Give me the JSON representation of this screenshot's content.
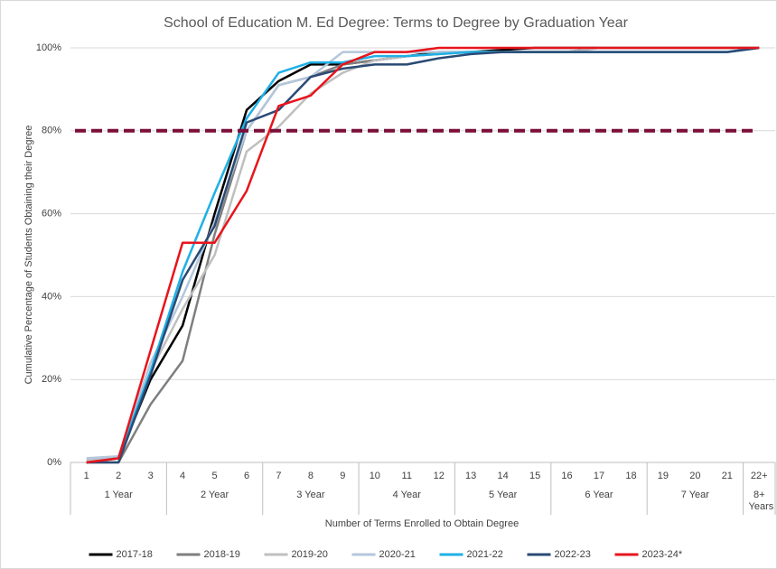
{
  "chart_data": {
    "type": "line",
    "title": "School of Education M. Ed Degree: Terms to Degree by Graduation Year",
    "y_label": "Cumulative Percentage of Students Obtaining their Degree",
    "x_label": "Number of Terms Enrolled to Obtain Degree",
    "categories": [
      "1",
      "2",
      "3",
      "4",
      "5",
      "6",
      "7",
      "8",
      "9",
      "10",
      "11",
      "12",
      "13",
      "14",
      "15",
      "16",
      "17",
      "18",
      "19",
      "20",
      "21",
      "22+"
    ],
    "category_groups": [
      "1 Year",
      "2 Year",
      "3 Year",
      "4 Year",
      "5 Year",
      "6 Year",
      "7 Year",
      "8+ Years"
    ],
    "ylim": [
      0,
      100
    ],
    "yticks": [
      {
        "value": 0,
        "label": "0%"
      },
      {
        "value": 20,
        "label": "20%"
      },
      {
        "value": 40,
        "label": "40%"
      },
      {
        "value": 60,
        "label": "60%"
      },
      {
        "value": 80,
        "label": "80%"
      },
      {
        "value": 100,
        "label": "100%"
      }
    ],
    "grid": true,
    "legend": "bottom",
    "reference_line": {
      "value": 80,
      "color": "#7b0f3a",
      "style": "dashed"
    },
    "series": [
      {
        "name": "2017-18",
        "color": "#000000",
        "values": [
          0,
          1,
          20,
          33,
          60,
          85,
          92,
          96,
          96,
          97,
          98,
          99,
          99,
          99.5,
          100,
          100,
          100,
          100,
          100,
          100,
          100,
          100
        ]
      },
      {
        "name": "2018-19",
        "color": "#7f7f7f",
        "values": [
          0,
          0,
          14,
          24.5,
          55,
          80,
          91,
          93,
          96,
          97,
          98,
          98.5,
          99,
          99,
          99,
          99,
          100,
          100,
          100,
          100,
          100,
          100
        ]
      },
      {
        "name": "2019-20",
        "color": "#bfbfbf",
        "values": [
          0.5,
          1,
          22,
          37,
          50,
          75,
          81,
          89,
          94,
          97,
          98,
          98.5,
          99,
          99,
          99,
          99,
          100,
          100,
          100,
          100,
          100,
          100
        ]
      },
      {
        "name": "2020-21",
        "color": "#b4c7dc",
        "values": [
          1,
          1.5,
          24,
          40,
          58,
          80,
          91,
          93,
          99,
          99,
          99,
          99,
          99,
          99,
          99,
          99,
          99,
          99,
          99,
          99,
          99,
          100
        ]
      },
      {
        "name": "2021-22",
        "color": "#1fb0e6",
        "values": [
          0,
          1,
          22,
          46,
          65,
          83,
          94,
          96.5,
          96.5,
          98,
          98,
          98.5,
          99,
          99,
          99,
          99,
          99,
          99,
          99,
          99,
          99,
          100
        ]
      },
      {
        "name": "2022-23",
        "color": "#2a4a75",
        "values": [
          0,
          0,
          21,
          44,
          57,
          82,
          85,
          93,
          95,
          96,
          96,
          97.5,
          98.5,
          99,
          99,
          99,
          99,
          99,
          99,
          99,
          99,
          100
        ]
      },
      {
        "name": "2023-24*",
        "color": "#e8141b",
        "values": [
          0,
          1,
          27,
          53,
          53,
          65.5,
          86,
          88.5,
          96,
          99,
          99,
          100,
          100,
          100,
          100,
          100,
          100,
          100,
          100,
          100,
          100,
          100
        ]
      }
    ]
  }
}
